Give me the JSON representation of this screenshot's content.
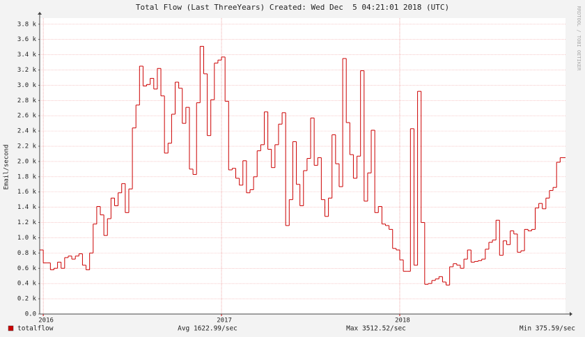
{
  "chart_data": {
    "type": "step-line",
    "title": "Total Flow (Last ThreeYears) Created: Wed Dec  5 04:21:01 2018 (UTC)",
    "y_label": "Email/second",
    "watermark": "RRDTOOL / TOBI OETIKER",
    "xlim": [
      2015.98,
      2018.93
    ],
    "xticks": [
      2016,
      2017,
      2018
    ],
    "ylim": [
      0,
      3880
    ],
    "yticks": [
      {
        "value": 0,
        "label": "0.0"
      },
      {
        "value": 200,
        "label": "0.2 k"
      },
      {
        "value": 400,
        "label": "0.4 k"
      },
      {
        "value": 600,
        "label": "0.6 k"
      },
      {
        "value": 800,
        "label": "0.8 k"
      },
      {
        "value": 1000,
        "label": "1.0 k"
      },
      {
        "value": 1200,
        "label": "1.2 k"
      },
      {
        "value": 1400,
        "label": "1.4 k"
      },
      {
        "value": 1600,
        "label": "1.6 k"
      },
      {
        "value": 1800,
        "label": "1.8 k"
      },
      {
        "value": 2000,
        "label": "2.0 k"
      },
      {
        "value": 2200,
        "label": "2.2 k"
      },
      {
        "value": 2400,
        "label": "2.4 k"
      },
      {
        "value": 2600,
        "label": "2.6 k"
      },
      {
        "value": 2800,
        "label": "2.8 k"
      },
      {
        "value": 3000,
        "label": "3.0 k"
      },
      {
        "value": 3200,
        "label": "3.2 k"
      },
      {
        "value": 3400,
        "label": "3.4 k"
      },
      {
        "value": 3600,
        "label": "3.6 k"
      },
      {
        "value": 3800,
        "label": "3.8 k"
      }
    ],
    "grid": true,
    "x": [
      2015.98,
      2016.0,
      2016.02,
      2016.04,
      2016.06,
      2016.08,
      2016.1,
      2016.12,
      2016.14,
      2016.16,
      2016.18,
      2016.2,
      2016.22,
      2016.24,
      2016.26,
      2016.28,
      2016.3,
      2016.32,
      2016.34,
      2016.36,
      2016.38,
      2016.4,
      2016.42,
      2016.44,
      2016.46,
      2016.48,
      2016.5,
      2016.52,
      2016.54,
      2016.56,
      2016.58,
      2016.6,
      2016.62,
      2016.64,
      2016.66,
      2016.68,
      2016.7,
      2016.72,
      2016.74,
      2016.76,
      2016.78,
      2016.8,
      2016.82,
      2016.84,
      2016.86,
      2016.88,
      2016.9,
      2016.92,
      2016.94,
      2016.96,
      2016.98,
      2017.0,
      2017.02,
      2017.04,
      2017.06,
      2017.08,
      2017.1,
      2017.12,
      2017.14,
      2017.16,
      2017.18,
      2017.2,
      2017.22,
      2017.24,
      2017.26,
      2017.28,
      2017.3,
      2017.32,
      2017.34,
      2017.36,
      2017.38,
      2017.4,
      2017.42,
      2017.44,
      2017.46,
      2017.48,
      2017.5,
      2017.52,
      2017.54,
      2017.56,
      2017.58,
      2017.6,
      2017.62,
      2017.64,
      2017.66,
      2017.68,
      2017.7,
      2017.72,
      2017.74,
      2017.76,
      2017.78,
      2017.8,
      2017.82,
      2017.84,
      2017.86,
      2017.88,
      2017.9,
      2017.92,
      2017.94,
      2017.96,
      2017.98,
      2018.0,
      2018.02,
      2018.04,
      2018.06,
      2018.08,
      2018.1,
      2018.12,
      2018.14,
      2018.16,
      2018.18,
      2018.2,
      2018.22,
      2018.24,
      2018.26,
      2018.28,
      2018.3,
      2018.32,
      2018.34,
      2018.36,
      2018.38,
      2018.4,
      2018.42,
      2018.44,
      2018.46,
      2018.48,
      2018.5,
      2018.52,
      2018.54,
      2018.56,
      2018.58,
      2018.6,
      2018.62,
      2018.64,
      2018.66,
      2018.68,
      2018.7,
      2018.72,
      2018.74,
      2018.76,
      2018.78,
      2018.8,
      2018.82,
      2018.84,
      2018.86,
      2018.88,
      2018.9
    ],
    "series": [
      {
        "name": "totalflow",
        "color": "#cc0000",
        "values": [
          840,
          670,
          670,
          580,
          600,
          680,
          600,
          740,
          760,
          720,
          760,
          790,
          640,
          580,
          800,
          1180,
          1410,
          1300,
          1030,
          1250,
          1520,
          1420,
          1590,
          1710,
          1330,
          1640,
          2440,
          2740,
          3250,
          2990,
          3010,
          3090,
          2950,
          3220,
          2860,
          2110,
          2240,
          2620,
          3040,
          2960,
          2500,
          2710,
          1900,
          1830,
          2770,
          3510,
          3150,
          2340,
          2810,
          3290,
          3330,
          3370,
          2790,
          1890,
          1910,
          1780,
          1690,
          2010,
          1590,
          1630,
          1800,
          2140,
          2220,
          2650,
          2160,
          1920,
          2220,
          2490,
          2640,
          1160,
          1500,
          2260,
          1700,
          1420,
          1880,
          2040,
          2570,
          1950,
          2050,
          1500,
          1280,
          1520,
          2350,
          1970,
          1670,
          3350,
          2510,
          2090,
          1780,
          2070,
          3190,
          1480,
          1850,
          2410,
          1330,
          1410,
          1180,
          1160,
          1110,
          860,
          840,
          710,
          560,
          560,
          2430,
          640,
          2920,
          1200,
          390,
          400,
          440,
          460,
          490,
          420,
          380,
          620,
          660,
          640,
          600,
          720,
          840,
          680,
          690,
          700,
          720,
          850,
          940,
          970,
          1230,
          770,
          960,
          910,
          1090,
          1050,
          810,
          830,
          1110,
          1090,
          1110,
          1390,
          1450,
          1380,
          1520,
          1620,
          1660,
          1990,
          2050
        ]
      }
    ],
    "stats": [
      "Avg 1622.99/sec",
      "Max 3512.52/sec",
      "Min 375.59/sec"
    ]
  }
}
